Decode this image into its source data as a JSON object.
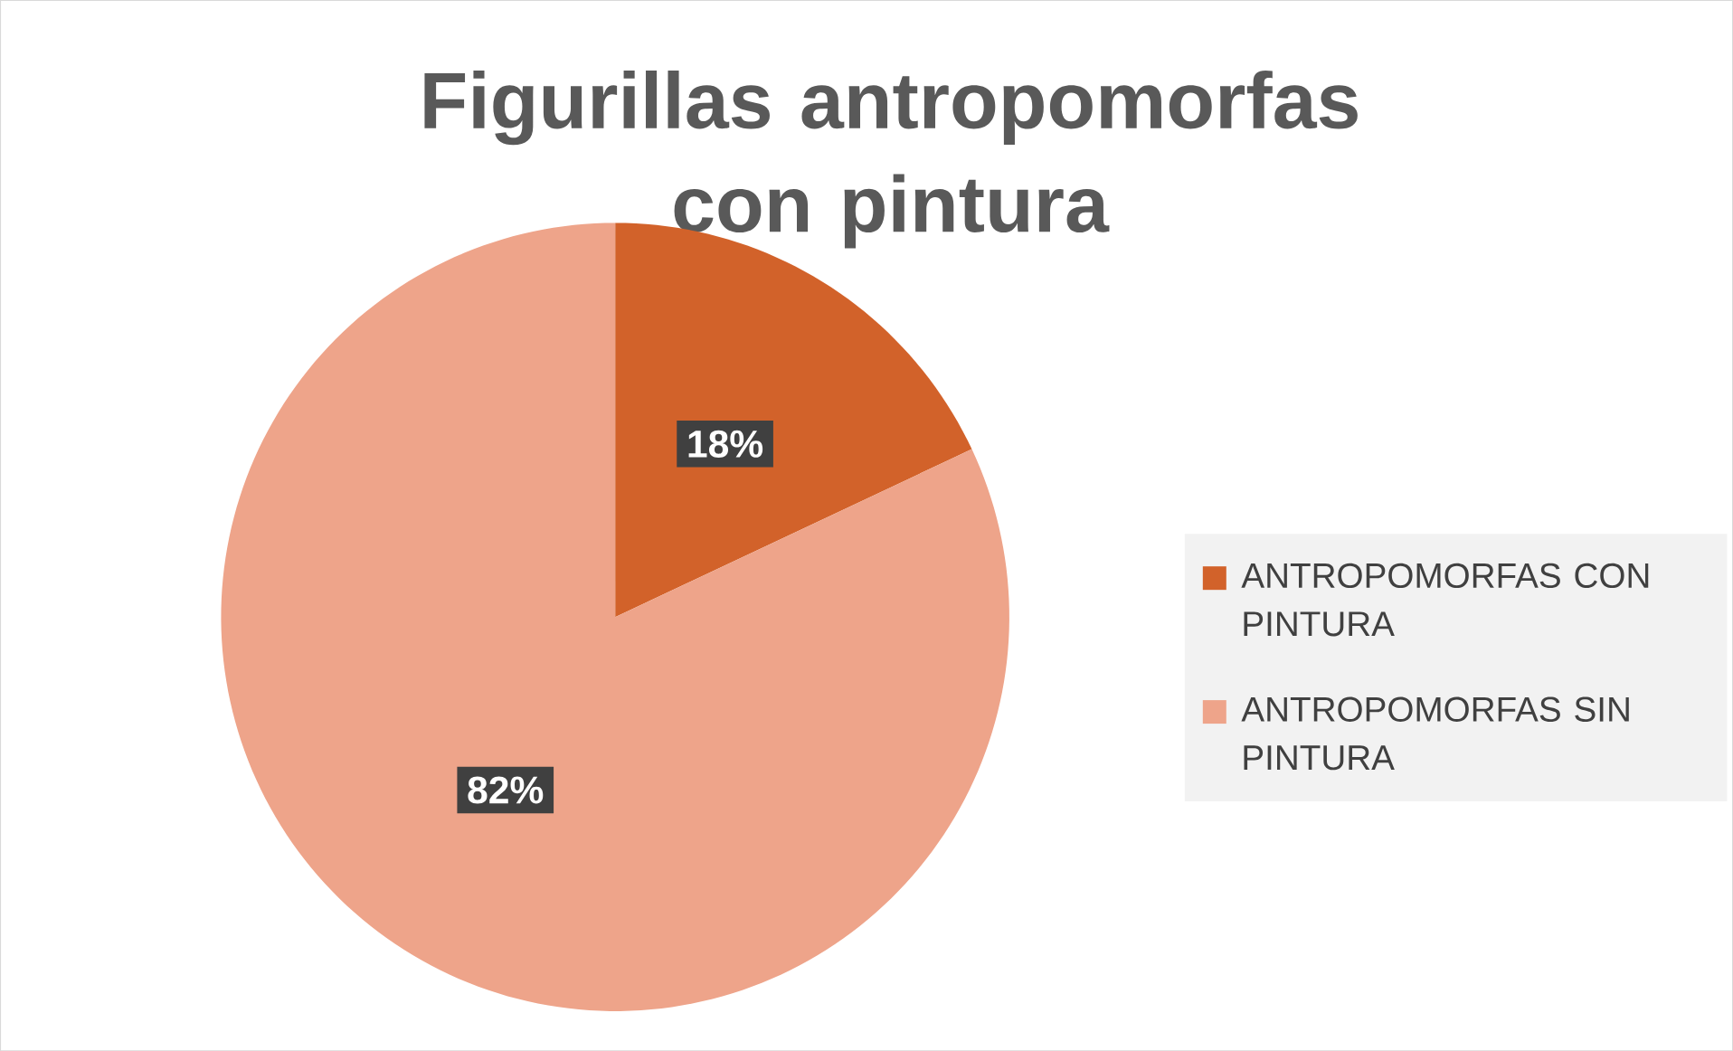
{
  "chart_data": {
    "type": "pie",
    "title": "Figurillas antropomorfas con pintura",
    "categories": [
      "ANTROPOMORFAS CON PINTURA",
      "ANTROPOMORFAS SIN PINTURA"
    ],
    "values": [
      18,
      82
    ],
    "colors": [
      "#d2622a",
      "#eea48a"
    ],
    "value_labels": [
      "18%",
      "82%"
    ],
    "legend": "right"
  }
}
